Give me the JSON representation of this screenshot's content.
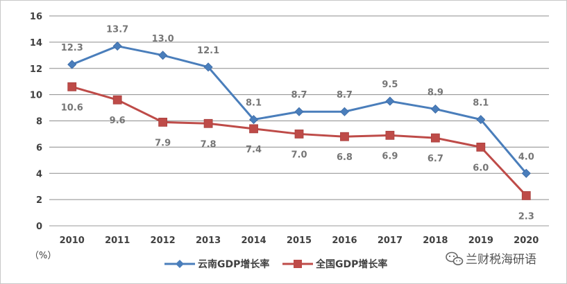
{
  "chart_data": {
    "type": "line",
    "categories": [
      "2010",
      "2011",
      "2012",
      "2013",
      "2014",
      "2015",
      "2016",
      "2017",
      "2018",
      "2019",
      "2020"
    ],
    "series": [
      {
        "name": "云南GDP增长率",
        "values": [
          12.3,
          13.7,
          13.0,
          12.1,
          8.1,
          8.7,
          8.7,
          9.5,
          8.9,
          8.1,
          4.0
        ],
        "labels": [
          "12.3",
          "13.7",
          "13.0",
          "12.1",
          "8.1",
          "8.7",
          "8.7",
          "9.5",
          "8.9",
          "8.1",
          "4.0"
        ],
        "color": "#4a7ebb",
        "marker": "diamond"
      },
      {
        "name": "全国GDP增长率",
        "values": [
          10.6,
          9.6,
          7.9,
          7.8,
          7.4,
          7.0,
          6.8,
          6.9,
          6.7,
          6.0,
          2.3
        ],
        "labels": [
          "10.6",
          "9.6",
          "7.9",
          "7.8",
          "7.4",
          "7.0",
          "6.8",
          "6.9",
          "6.7",
          "6.0",
          "2.3"
        ],
        "color": "#be4b48",
        "marker": "square"
      }
    ],
    "ylim": [
      0,
      16
    ],
    "yticks": [
      0,
      2,
      4,
      6,
      8,
      10,
      12,
      14,
      16
    ],
    "ytick_labels": [
      "0",
      "2",
      "4",
      "6",
      "8",
      "10",
      "12",
      "14",
      "16"
    ],
    "ylabel": "（%）",
    "grid": true,
    "legend": "bottom-center"
  },
  "watermark": "兰财税海研语"
}
